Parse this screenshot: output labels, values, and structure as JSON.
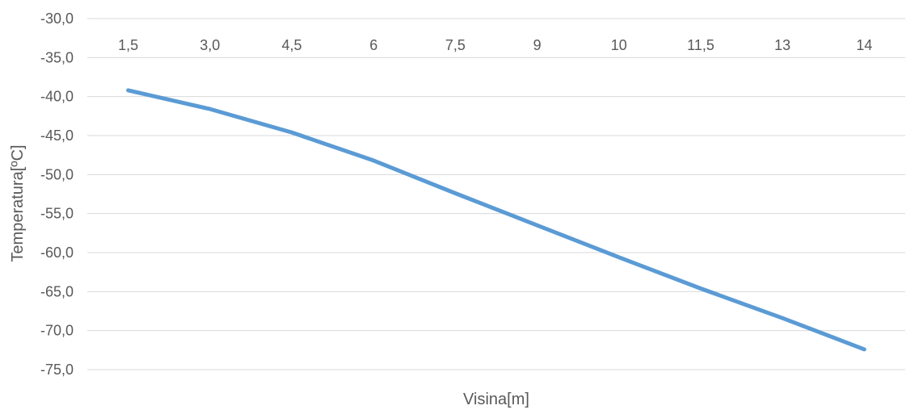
{
  "chart_data": {
    "type": "line",
    "title": "",
    "xlabel": "Visina[m]",
    "ylabel": "Temperatura[ºC]",
    "categories": [
      "1,5",
      "3,0",
      "4,5",
      "6",
      "7,5",
      "9",
      "10",
      "11,5",
      "13",
      "14"
    ],
    "series": [
      {
        "values": [
          -39.2,
          -41.6,
          -44.6,
          -48.2,
          -52.4,
          -56.5,
          -60.6,
          -64.6,
          -68.4,
          -72.4
        ]
      }
    ],
    "ylim": [
      -75,
      -30
    ],
    "yticks": [
      -30,
      -35,
      -40,
      -45,
      -50,
      -55,
      -60,
      -65,
      -70,
      -75
    ],
    "ytick_labels": [
      "-30,0",
      "-35,0",
      "-40,0",
      "-45,0",
      "-50,0",
      "-55,0",
      "-60,0",
      "-65,0",
      "-70,0",
      "-75,0"
    ],
    "x_axis_position": "top",
    "grid": true,
    "legend": "none",
    "colors": {
      "line": "#5B9BD5",
      "grid": "#D9D9D9",
      "text": "#595959"
    }
  }
}
